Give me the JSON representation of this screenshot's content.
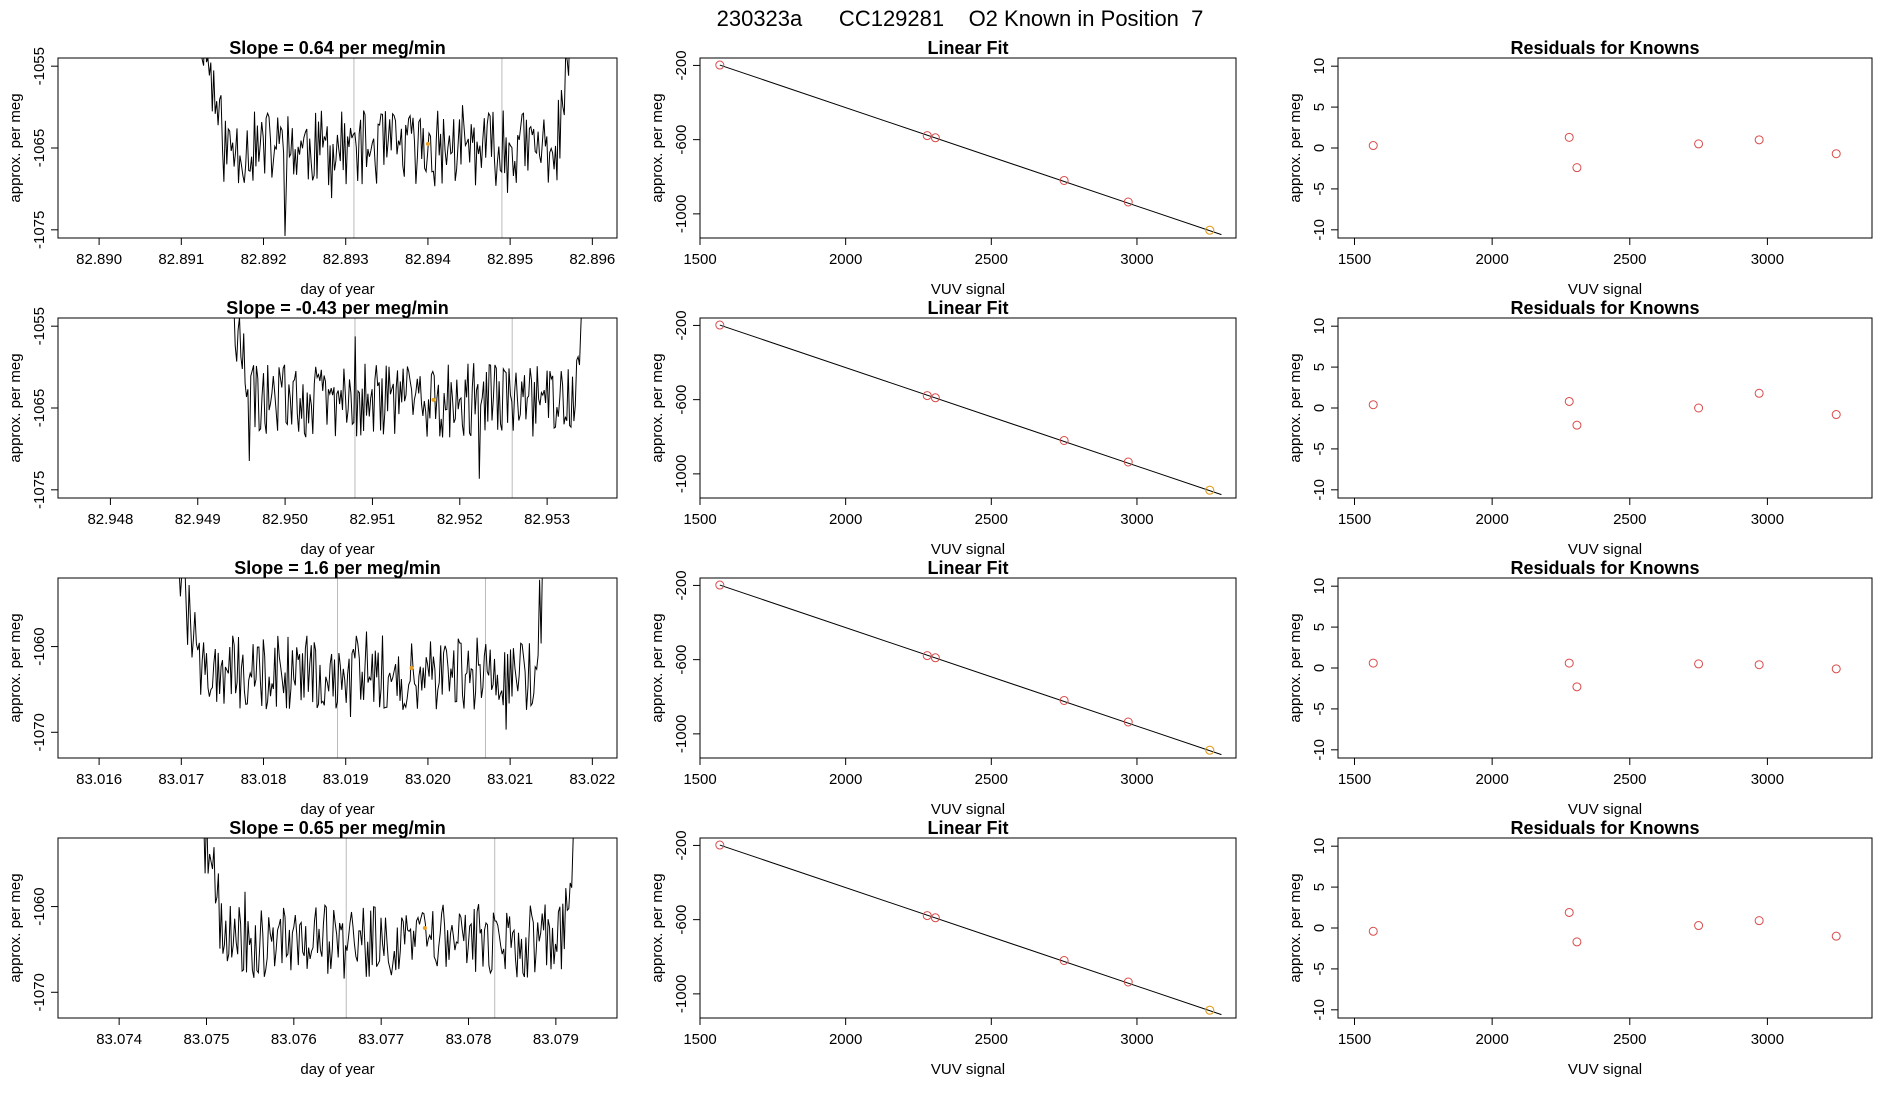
{
  "title": "230323a      CC129281    O2 Known in Position  7",
  "rows": [
    {
      "ts": {
        "title": "Slope =  0.64  per meg/min",
        "xlabel": "day of year",
        "ylabel": "approx. per meg",
        "xlim": [
          82.8895,
          82.8963
        ],
        "ylim": [
          -1076,
          -1054
        ],
        "xticks": [
          "82.890",
          "82.891",
          "82.892",
          "82.893",
          "82.894",
          "82.895",
          "82.896"
        ],
        "yticks": [
          "-1055",
          "-1065",
          "-1075"
        ],
        "t_start": 82.8912,
        "t_end": 82.8958,
        "vlines": [
          82.8931,
          82.8949
        ],
        "center": 82.894,
        "base": -1065,
        "marker": [
          82.894,
          -1064.5
        ],
        "seed": 11
      },
      "fit": {
        "title": "Linear Fit",
        "xlabel": "VUV signal",
        "ylabel": "approx. per meg",
        "xlim": [
          1500,
          3340
        ],
        "ylim": [
          -1130,
          -160
        ],
        "xticks": [
          "1500",
          "2000",
          "2500",
          "3000"
        ],
        "yticks": [
          "-200",
          "-600",
          "-1000"
        ],
        "points": [
          [
            1568,
            -198
          ],
          [
            2280,
            -578
          ],
          [
            2308,
            -590
          ],
          [
            2750,
            -820
          ],
          [
            2970,
            -936
          ]
        ],
        "highlight": [
          [
            3250,
            -1088
          ]
        ],
        "line": [
          [
            1568,
            -198
          ],
          [
            3290,
            -1112
          ]
        ]
      },
      "res": {
        "title": "Residuals for Knowns",
        "xlabel": "VUV signal",
        "ylabel": "approx. per meg",
        "xlim": [
          1440,
          3380
        ],
        "ylim": [
          -11,
          11
        ],
        "xticks": [
          "1500",
          "2000",
          "2500",
          "3000"
        ],
        "yticks": [
          "10",
          "5",
          "0",
          "-5",
          "-10"
        ],
        "points": [
          [
            1568,
            0.3
          ],
          [
            2280,
            1.3
          ],
          [
            2308,
            -2.4
          ],
          [
            2750,
            0.5
          ],
          [
            2970,
            1.0
          ],
          [
            3250,
            -0.7
          ]
        ]
      }
    },
    {
      "ts": {
        "title": "Slope =  -0.43  per meg/min",
        "xlabel": "day of year",
        "ylabel": "approx. per meg",
        "xlim": [
          82.9474,
          82.9538
        ],
        "ylim": [
          -1076,
          -1054
        ],
        "xticks": [
          "82.948",
          "82.949",
          "82.950",
          "82.951",
          "82.952",
          "82.953"
        ],
        "yticks": [
          "-1055",
          "-1065",
          "-1075"
        ],
        "t_start": 82.9493,
        "t_end": 82.9535,
        "vlines": [
          82.9508,
          82.9526
        ],
        "center": 82.9517,
        "base": -1064,
        "marker": [
          82.9517,
          -1064
        ],
        "seed": 29
      },
      "fit": {
        "title": "Linear Fit",
        "xlabel": "VUV signal",
        "ylabel": "approx. per meg",
        "xlim": [
          1500,
          3340
        ],
        "ylim": [
          -1130,
          -160
        ],
        "xticks": [
          "1500",
          "2000",
          "2500",
          "3000"
        ],
        "yticks": [
          "-200",
          "-600",
          "-1000"
        ],
        "points": [
          [
            1568,
            -198
          ],
          [
            2280,
            -578
          ],
          [
            2308,
            -590
          ],
          [
            2750,
            -820
          ],
          [
            2970,
            -936
          ]
        ],
        "highlight": [
          [
            3250,
            -1088
          ]
        ],
        "line": [
          [
            1568,
            -198
          ],
          [
            3290,
            -1112
          ]
        ]
      },
      "res": {
        "title": "Residuals for Knowns",
        "xlabel": "VUV signal",
        "ylabel": "approx. per meg",
        "xlim": [
          1440,
          3380
        ],
        "ylim": [
          -11,
          11
        ],
        "xticks": [
          "1500",
          "2000",
          "2500",
          "3000"
        ],
        "yticks": [
          "10",
          "5",
          "0",
          "-5",
          "-10"
        ],
        "points": [
          [
            1568,
            0.4
          ],
          [
            2280,
            0.8
          ],
          [
            2308,
            -2.1
          ],
          [
            2750,
            0.0
          ],
          [
            2970,
            1.8
          ],
          [
            3250,
            -0.8
          ]
        ]
      }
    },
    {
      "ts": {
        "title": "Slope =  1.6  per meg/min",
        "xlabel": "day of year",
        "ylabel": "approx. per meg",
        "xlim": [
          83.0155,
          83.0223
        ],
        "ylim": [
          -1073,
          -1052
        ],
        "xticks": [
          "83.016",
          "83.017",
          "83.018",
          "83.019",
          "83.020",
          "83.021",
          "83.022"
        ],
        "yticks": [
          "-1060",
          "-1070"
        ],
        "t_start": 83.0169,
        "t_end": 83.0215,
        "vlines": [
          83.0189,
          83.0207
        ],
        "center": 83.0198,
        "base": -1063,
        "marker": [
          83.0198,
          -1062.5
        ],
        "seed": 47
      },
      "fit": {
        "title": "Linear Fit",
        "xlabel": "VUV signal",
        "ylabel": "approx. per meg",
        "xlim": [
          1500,
          3340
        ],
        "ylim": [
          -1130,
          -160
        ],
        "xticks": [
          "1500",
          "2000",
          "2500",
          "3000"
        ],
        "yticks": [
          "-200",
          "-600",
          "-1000"
        ],
        "points": [
          [
            1568,
            -198
          ],
          [
            2280,
            -578
          ],
          [
            2308,
            -590
          ],
          [
            2750,
            -820
          ],
          [
            2970,
            -936
          ]
        ],
        "highlight": [
          [
            3250,
            -1088
          ]
        ],
        "line": [
          [
            1568,
            -198
          ],
          [
            3290,
            -1112
          ]
        ]
      },
      "res": {
        "title": "Residuals for Knowns",
        "xlabel": "VUV signal",
        "ylabel": "approx. per meg",
        "xlim": [
          1440,
          3380
        ],
        "ylim": [
          -11,
          11
        ],
        "xticks": [
          "1500",
          "2000",
          "2500",
          "3000"
        ],
        "yticks": [
          "10",
          "5",
          "0",
          "-5",
          "-10"
        ],
        "points": [
          [
            1568,
            0.6
          ],
          [
            2280,
            0.6
          ],
          [
            2308,
            -2.3
          ],
          [
            2750,
            0.5
          ],
          [
            2970,
            0.4
          ],
          [
            3250,
            -0.1
          ]
        ]
      }
    },
    {
      "ts": {
        "title": "Slope =  0.65  per meg/min",
        "xlabel": "day of year",
        "ylabel": "approx. per meg",
        "xlim": [
          83.0733,
          83.0797
        ],
        "ylim": [
          -1073,
          -1052
        ],
        "xticks": [
          "83.074",
          "83.075",
          "83.076",
          "83.077",
          "83.078",
          "83.079"
        ],
        "yticks": [
          "-1060",
          "-1070"
        ],
        "t_start": 83.0749,
        "t_end": 83.0793,
        "vlines": [
          83.0766,
          83.0783
        ],
        "center": 83.0775,
        "base": -1064,
        "marker": [
          83.0775,
          -1062.5
        ],
        "seed": 71
      },
      "fit": {
        "title": "Linear Fit",
        "xlabel": "VUV signal",
        "ylabel": "approx. per meg",
        "xlim": [
          1500,
          3340
        ],
        "ylim": [
          -1130,
          -160
        ],
        "xticks": [
          "1500",
          "2000",
          "2500",
          "3000"
        ],
        "yticks": [
          "-200",
          "-600",
          "-1000"
        ],
        "points": [
          [
            1568,
            -198
          ],
          [
            2280,
            -578
          ],
          [
            2308,
            -590
          ],
          [
            2750,
            -820
          ],
          [
            2970,
            -936
          ]
        ],
        "highlight": [
          [
            3250,
            -1088
          ]
        ],
        "line": [
          [
            1568,
            -198
          ],
          [
            3290,
            -1112
          ]
        ]
      },
      "res": {
        "title": "Residuals for Knowns",
        "xlabel": "VUV signal",
        "ylabel": "approx. per meg",
        "xlim": [
          1440,
          3380
        ],
        "ylim": [
          -11,
          11
        ],
        "xticks": [
          "1500",
          "2000",
          "2500",
          "3000"
        ],
        "yticks": [
          "10",
          "5",
          "0",
          "-5",
          "-10"
        ],
        "points": [
          [
            1568,
            -0.4
          ],
          [
            2280,
            1.9
          ],
          [
            2308,
            -1.7
          ],
          [
            2750,
            0.3
          ],
          [
            2970,
            0.9
          ],
          [
            3250,
            -1.0
          ]
        ]
      }
    }
  ],
  "colors": {
    "line": "#000000",
    "point": "#d94a4a",
    "highlight": "#e8a020",
    "vline": "#bbbbbb",
    "axis": "#000000"
  }
}
